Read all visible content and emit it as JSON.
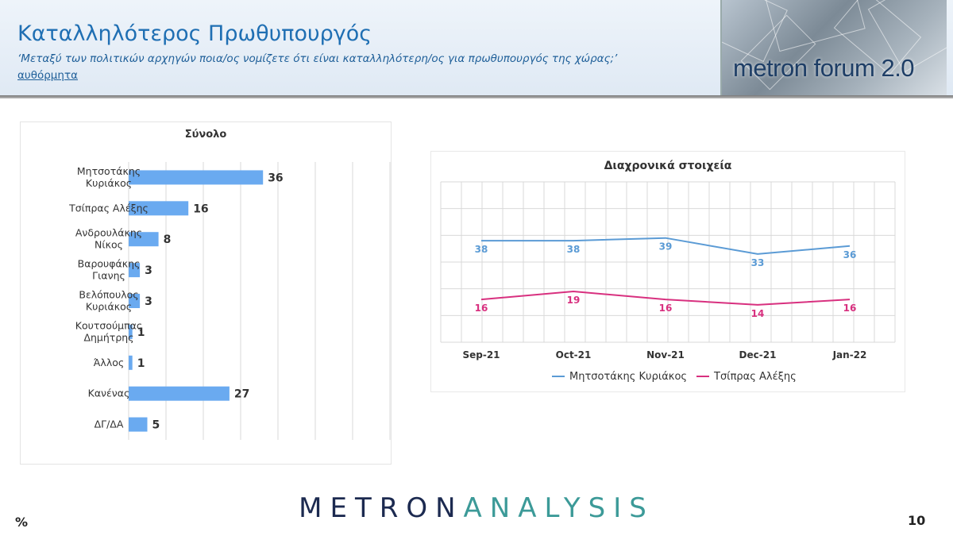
{
  "header": {
    "title": "Καταλληλότερος Πρωθυπουργός",
    "question": "‘Μεταξύ των πολιτικών αρχηγών ποια/ος νομίζετε ότι είναι καταλληλότερη/ος για πρωθυπουργός της χώρας;’",
    "response_type": "αυθόρμητα",
    "logo_text": "metron forum 2.0"
  },
  "footer": {
    "brand_part1": "METRON",
    "brand_part2": "ANALYSIS",
    "unit": "%",
    "page_number": "10"
  },
  "colors": {
    "bar": "#6aaaf0",
    "mitsotakis": "#5b9bd5",
    "tsipras": "#d8307f",
    "title_blue": "#1f6fb3",
    "brand_dark": "#1c2a50",
    "brand_teal": "#3c9a98"
  },
  "chart_data": [
    {
      "type": "bar",
      "orientation": "horizontal",
      "title": "Σύνολο",
      "categories": [
        [
          "Μητσοτάκης",
          "Κυριάκος"
        ],
        [
          "Τσίπρας Αλέξης"
        ],
        [
          "Ανδρουλάκης",
          "Νίκος"
        ],
        [
          "Βαρουφάκης",
          "Γιανης"
        ],
        [
          "Βελόπουλος",
          "Κυριάκος"
        ],
        [
          "Κουτσούμπας",
          "Δημήτρης"
        ],
        [
          "Άλλος"
        ],
        [
          "Κανένας"
        ],
        [
          "ΔΓ/ΔΑ"
        ]
      ],
      "values": [
        36,
        16,
        8,
        3,
        3,
        1,
        1,
        27,
        5
      ],
      "xlim": [
        0,
        70
      ],
      "grid": true
    },
    {
      "type": "line",
      "title": "Διαχρονικά στοιχεία",
      "categories": [
        "Sep-21",
        "Oct-21",
        "Nov-21",
        "Dec-21",
        "Jan-22"
      ],
      "series": [
        {
          "name": "Μητσοτάκης Κυριάκος",
          "values": [
            38,
            38,
            39,
            33,
            36
          ]
        },
        {
          "name": "Τσίπρας Αλέξης",
          "values": [
            16,
            19,
            16,
            14,
            16
          ]
        }
      ],
      "ylim": [
        0,
        60
      ],
      "grid": true,
      "legend": "bottom"
    }
  ]
}
